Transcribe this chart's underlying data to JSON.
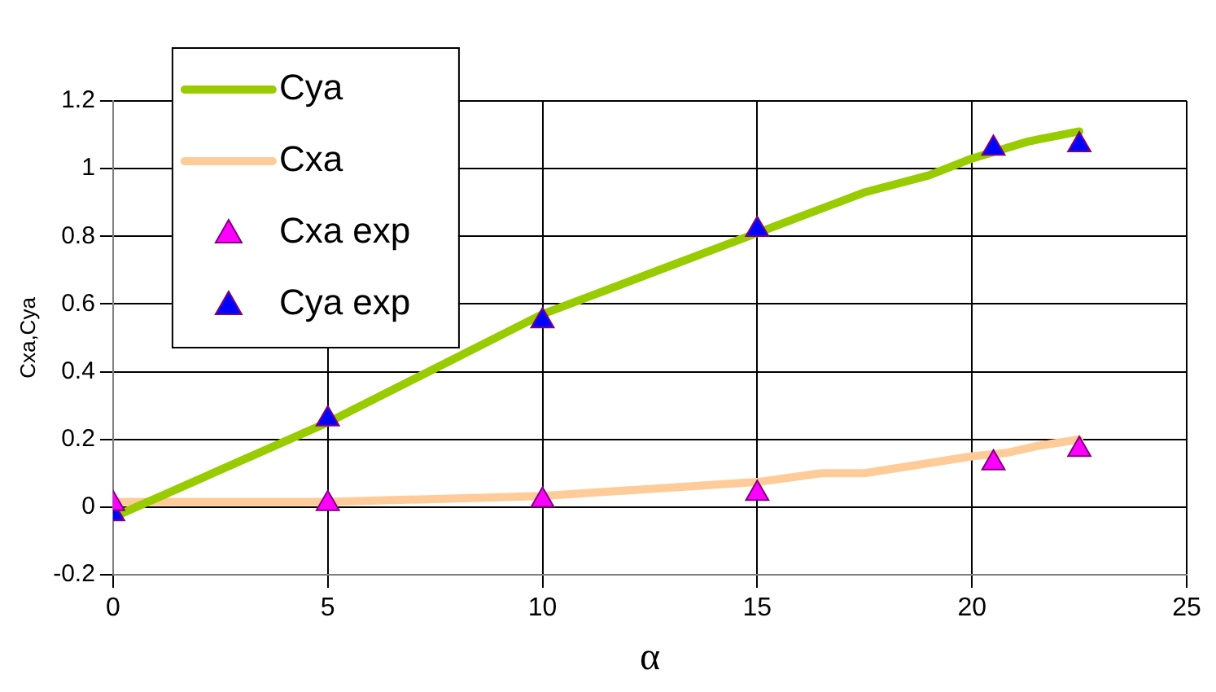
{
  "chart_data": {
    "type": "line",
    "xlabel": "α",
    "ylabel": "Cxa,Cya",
    "xlim": [
      0,
      25
    ],
    "xticks": [
      0,
      5,
      10,
      15,
      20,
      25
    ],
    "ylim": [
      -0.2,
      1.2
    ],
    "yticks": [
      -0.2,
      0,
      0.2,
      0.4,
      0.6,
      0.8,
      1,
      1.2
    ],
    "grid": true,
    "legend": "top left",
    "series": [
      {
        "name": "Cya",
        "type": "line",
        "color": "#99cc00",
        "marker": "none",
        "x": [
          0,
          5,
          7.5,
          10,
          12.5,
          15,
          17.5,
          19,
          20,
          21.3,
          22.5
        ],
        "values": [
          -0.03,
          0.25,
          0.41,
          0.57,
          0.69,
          0.81,
          0.93,
          0.98,
          1.03,
          1.08,
          1.11
        ]
      },
      {
        "name": "Cxa",
        "type": "line",
        "color": "#ffcc99",
        "marker": "none",
        "x": [
          0,
          5,
          10,
          15,
          16.5,
          17.5,
          20,
          20.8,
          21.5,
          22.5
        ],
        "values": [
          0.015,
          0.015,
          0.033,
          0.074,
          0.1,
          0.1,
          0.15,
          0.16,
          0.18,
          0.2
        ]
      },
      {
        "name": "Cxa exp",
        "type": "scatter",
        "color": "#ff00ff",
        "marker": "triangle",
        "x": [
          0,
          5,
          10,
          15,
          20.5,
          22.5
        ],
        "values": [
          0.01,
          0.01,
          0.02,
          0.04,
          0.13,
          0.17
        ]
      },
      {
        "name": "Cya exp",
        "type": "scatter",
        "color": "#0000ff",
        "marker": "triangle",
        "x": [
          0,
          5,
          10,
          15,
          20.5,
          22.5
        ],
        "values": [
          -0.02,
          0.26,
          0.55,
          0.82,
          1.06,
          1.07
        ]
      }
    ]
  }
}
